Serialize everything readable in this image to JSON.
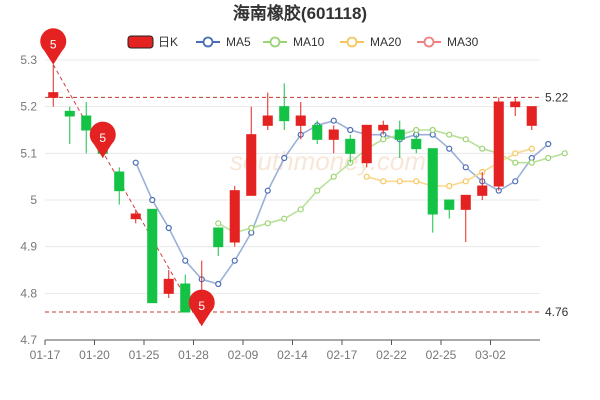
{
  "page": {
    "title": "海南橡胶(601118)",
    "watermark": "southmoney.com"
  },
  "chart_data": {
    "type": "candlestick",
    "title": "海南橡胶(601118)",
    "legend": [
      {
        "name": "日K",
        "color": "#e52222",
        "icon": "candle-icon"
      },
      {
        "name": "MA5",
        "color": "#4a6db5",
        "icon": "circle-icon"
      },
      {
        "name": "MA10",
        "color": "#9bd472",
        "icon": "circle-icon"
      },
      {
        "name": "MA20",
        "color": "#f5c65b",
        "icon": "circle-icon"
      },
      {
        "name": "MA30",
        "color": "#f08080",
        "icon": "circle-icon"
      }
    ],
    "legend_position": "top-center",
    "ylim": [
      4.7,
      5.3
    ],
    "yticks": [
      "4.7",
      "4.8",
      "4.9",
      "5",
      "5.1",
      "5.2",
      "5.3"
    ],
    "ytick_values": [
      4.7,
      4.8,
      4.9,
      5.0,
      5.1,
      5.2,
      5.3
    ],
    "xtick_labels": [
      "01-17",
      "01-20",
      "01-25",
      "01-28",
      "02-09",
      "02-14",
      "02-17",
      "02-22",
      "02-25",
      "03-02"
    ],
    "xtick_index": [
      0,
      3,
      6,
      9,
      12,
      15,
      18,
      21,
      24,
      27
    ],
    "grid": true,
    "up_color": "#e52222",
    "down_color": "#14c246",
    "candles": [
      {
        "o": 5.22,
        "c": 5.23,
        "h": 5.29,
        "l": 5.2
      },
      {
        "o": 5.19,
        "c": 5.18,
        "h": 5.2,
        "l": 5.12
      },
      {
        "o": 5.18,
        "c": 5.15,
        "h": 5.21,
        "l": 5.1
      },
      {
        "o": 5.13,
        "c": 5.1,
        "h": 5.16,
        "l": 5.09
      },
      {
        "o": 5.06,
        "c": 5.02,
        "h": 5.07,
        "l": 4.99
      },
      {
        "o": 4.96,
        "c": 4.97,
        "h": 4.98,
        "l": 4.95
      },
      {
        "o": 4.98,
        "c": 4.78,
        "h": 4.98,
        "l": 4.78
      },
      {
        "o": 4.8,
        "c": 4.83,
        "h": 4.85,
        "l": 4.79
      },
      {
        "o": 4.82,
        "c": 4.76,
        "h": 4.84,
        "l": 4.76
      },
      {
        "o": 4.77,
        "c": 4.8,
        "h": 4.87,
        "l": 4.73
      },
      {
        "o": 4.94,
        "c": 4.9,
        "h": 4.94,
        "l": 4.88
      },
      {
        "o": 4.91,
        "c": 5.02,
        "h": 5.03,
        "l": 4.9
      },
      {
        "o": 5.01,
        "c": 5.14,
        "h": 5.2,
        "l": 5.01
      },
      {
        "o": 5.16,
        "c": 5.18,
        "h": 5.23,
        "l": 5.15
      },
      {
        "o": 5.2,
        "c": 5.17,
        "h": 5.25,
        "l": 5.15
      },
      {
        "o": 5.16,
        "c": 5.18,
        "h": 5.21,
        "l": 5.13
      },
      {
        "o": 5.16,
        "c": 5.13,
        "h": 5.17,
        "l": 5.12
      },
      {
        "o": 5.13,
        "c": 5.15,
        "h": 5.16,
        "l": 5.1
      },
      {
        "o": 5.13,
        "c": 5.1,
        "h": 5.14,
        "l": 5.08
      },
      {
        "o": 5.08,
        "c": 5.16,
        "h": 5.16,
        "l": 5.07
      },
      {
        "o": 5.15,
        "c": 5.16,
        "h": 5.17,
        "l": 5.14
      },
      {
        "o": 5.15,
        "c": 5.13,
        "h": 5.17,
        "l": 5.09
      },
      {
        "o": 5.13,
        "c": 5.11,
        "h": 5.14,
        "l": 5.1
      },
      {
        "o": 5.11,
        "c": 4.97,
        "h": 5.11,
        "l": 4.93
      },
      {
        "o": 5.0,
        "c": 4.98,
        "h": 5.0,
        "l": 4.96
      },
      {
        "o": 4.98,
        "c": 5.01,
        "h": 5.01,
        "l": 4.91
      },
      {
        "o": 5.01,
        "c": 5.03,
        "h": 5.06,
        "l": 5.0
      },
      {
        "o": 5.03,
        "c": 5.21,
        "h": 5.22,
        "l": 5.02
      },
      {
        "o": 5.2,
        "c": 5.21,
        "h": 5.22,
        "l": 5.18
      },
      {
        "o": 5.16,
        "c": 5.2,
        "h": 5.2,
        "l": 5.15
      }
    ],
    "series": [
      {
        "name": "MA5",
        "color": "#9bb0d8",
        "marker": "#4a6db5",
        "start": 5,
        "values": [
          5.08,
          5.0,
          4.94,
          4.87,
          4.83,
          4.82,
          4.87,
          4.93,
          5.02,
          5.09,
          5.14,
          5.16,
          5.17,
          5.15,
          5.14,
          5.14,
          5.13,
          5.14,
          5.14,
          5.11,
          5.07,
          5.04,
          5.02,
          5.04,
          5.09,
          5.12
        ]
      },
      {
        "name": "MA10",
        "color": "#b8e29a",
        "marker": "#9bd472",
        "start": 10,
        "values": [
          4.95,
          4.93,
          4.94,
          4.95,
          4.96,
          4.98,
          5.02,
          5.05,
          5.08,
          5.11,
          5.13,
          5.14,
          5.15,
          5.15,
          5.14,
          5.13,
          5.11,
          5.1,
          5.08,
          5.08,
          5.09,
          5.1
        ]
      },
      {
        "name": "MA20",
        "color": "#f8d98f",
        "marker": "#f5c65b",
        "start": 19,
        "values": [
          5.05,
          5.04,
          5.04,
          5.04,
          5.03,
          5.03,
          5.04,
          5.06,
          5.08,
          5.1,
          5.11
        ]
      }
    ],
    "reference_lines": [
      {
        "value": 5.22,
        "label": "5.22"
      },
      {
        "value": 4.76,
        "label": "4.76"
      }
    ],
    "pins": [
      {
        "index": 0,
        "value": 5.29,
        "label": "5"
      },
      {
        "index": 3,
        "value": 5.09,
        "label": "5"
      },
      {
        "index": 9,
        "value": 4.73,
        "label": "5"
      }
    ]
  }
}
